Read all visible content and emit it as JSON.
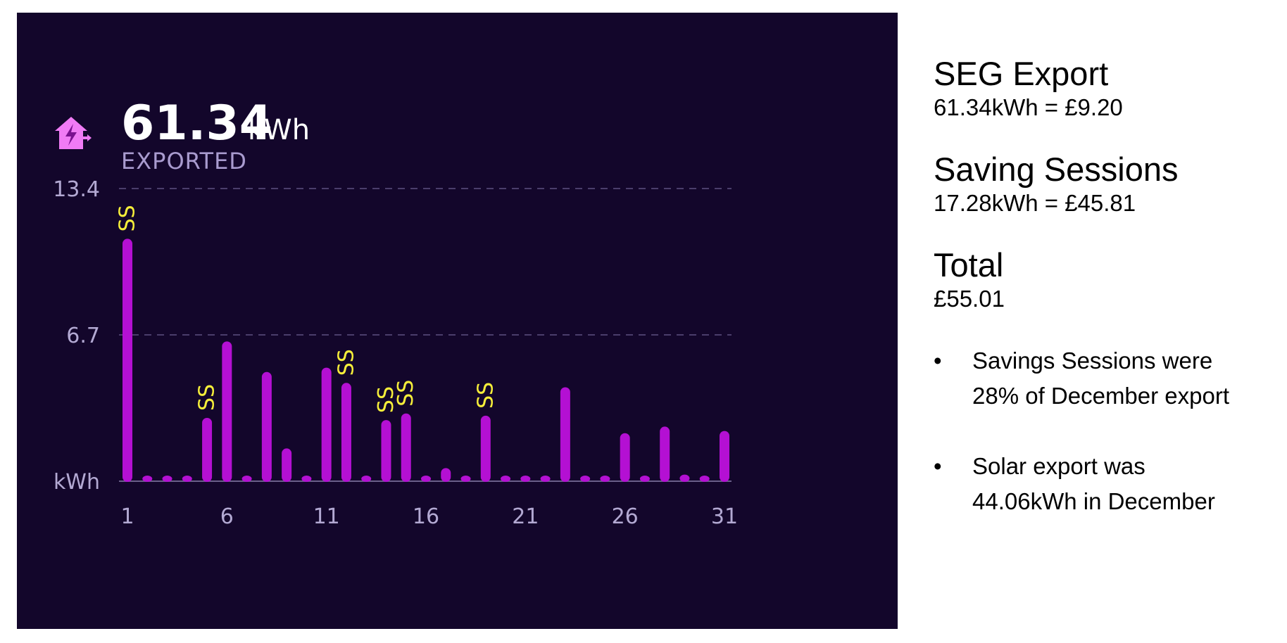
{
  "header": {
    "value": "61.34",
    "unit": "kWh",
    "label": "EXPORTED",
    "icon": "house-export-icon"
  },
  "chart_data": {
    "type": "bar",
    "x": [
      1,
      2,
      3,
      4,
      5,
      6,
      7,
      8,
      9,
      10,
      11,
      12,
      13,
      14,
      15,
      16,
      17,
      18,
      19,
      20,
      21,
      22,
      23,
      24,
      25,
      26,
      27,
      28,
      29,
      30,
      31
    ],
    "values": [
      11.1,
      0.2,
      0.1,
      0.1,
      2.9,
      6.4,
      0.1,
      5.0,
      1.5,
      0.2,
      5.2,
      4.5,
      0.05,
      2.8,
      3.1,
      0.1,
      0.6,
      0.1,
      3.0,
      0.15,
      0.1,
      0.1,
      4.3,
      0.1,
      0.1,
      2.2,
      0.05,
      2.5,
      0.3,
      0.1,
      2.3
    ],
    "x_ticks": [
      "1",
      "6",
      "11",
      "16",
      "21",
      "26",
      "31"
    ],
    "y_ticks": [
      "13.4",
      "6.7",
      "kWh"
    ],
    "ylim": [
      0,
      13.4
    ],
    "grid": true,
    "annotations": [
      {
        "day": 1,
        "text": "SS"
      },
      {
        "day": 5,
        "text": "SS"
      },
      {
        "day": 12,
        "text": "SS"
      },
      {
        "day": 14,
        "text": "SS"
      },
      {
        "day": 15,
        "text": "SS"
      },
      {
        "day": 19,
        "text": "SS"
      }
    ],
    "colors": {
      "background": "#13062b",
      "bar": "#b410d3",
      "grid": "#4a3d6b",
      "annotation": "#f6ee3a",
      "tick": "#b3a9d3"
    }
  },
  "summary": {
    "seg": {
      "title": "SEG Export",
      "value": "61.34kWh = £9.20"
    },
    "saving": {
      "title": "Saving Sessions",
      "value": "17.28kWh = £45.81"
    },
    "total": {
      "title": "Total",
      "value": "£55.01"
    },
    "bullets": [
      {
        "line1": "Savings Sessions were",
        "line2": "28% of December export"
      },
      {
        "line1": "Solar export was",
        "line2": "44.06kWh in December"
      }
    ]
  }
}
